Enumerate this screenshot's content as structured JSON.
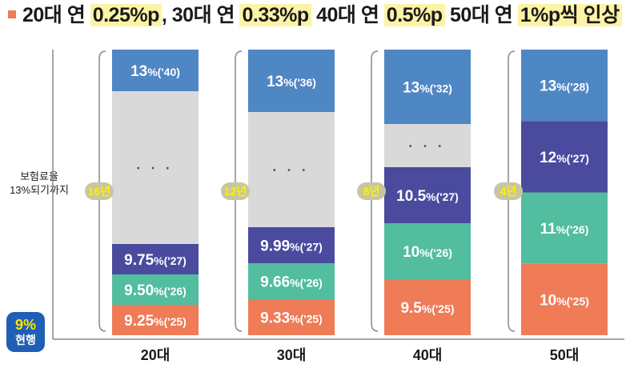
{
  "header": {
    "title_parts": [
      {
        "text": "20대 연 ",
        "hl": false
      },
      {
        "text": "0.25%p",
        "hl": true
      },
      {
        "text": ", 30대 연 ",
        "hl": false
      },
      {
        "text": "0.33%p",
        "hl": true
      },
      {
        "text": " 40대 연 ",
        "hl": false
      },
      {
        "text": "0.5%p",
        "hl": true
      },
      {
        "text": " 50대 연 ",
        "hl": false
      },
      {
        "text": "1%p씩 인상",
        "hl": true
      }
    ]
  },
  "side_label": [
    "보험료율",
    "13%되기까지"
  ],
  "current": {
    "pct": "9%",
    "label": "현행"
  },
  "colors": {
    "bullet": "#f07b57",
    "highlight": "#fdf3a6",
    "badge_bg": "#1f5fb5",
    "badge_pct": "#ffe600",
    "badge_text": "#ffffff",
    "period_bg": "#c8c6a0",
    "period_text": "#ffee00",
    "bracket": "#888888",
    "axis": "#888888",
    "gap_fill": "#d9d9d9",
    "dots": "#555555"
  },
  "chart_data": {
    "type": "stacked-bar",
    "title": "20대 연 0.25%p, 30대 연 0.33%p 40대 연 0.5%p 50대 연 1%p씩 인상",
    "baseline_label": "9%",
    "target_label": "13%",
    "ylim": [
      9,
      13
    ],
    "categories": [
      "20대",
      "30대",
      "40대",
      "50대"
    ],
    "periods": [
      "16년",
      "12년",
      "8년",
      "4년"
    ],
    "bars": [
      {
        "category": "20대",
        "segments": [
          {
            "from": 9.0,
            "to": 9.25,
            "label": "9.25%('25)",
            "color": "#ef7b57",
            "text": "9.25",
            "year": "('25)"
          },
          {
            "from": 9.25,
            "to": 9.5,
            "label": "9.50%('26)",
            "color": "#52bd9f",
            "text": "9.50",
            "year": "('26)"
          },
          {
            "from": 9.5,
            "to": 9.75,
            "label": "9.75%('27)",
            "color": "#4a4a9e",
            "text": "9.75",
            "year": "('27)"
          },
          {
            "from": 9.75,
            "to": 12.75,
            "label": "…",
            "color": "#d9d9d9",
            "gap": true
          },
          {
            "from": 12.75,
            "to": 13.0,
            "label": "13%('40)",
            "color": "#4f86c4",
            "text": "13",
            "year": "('40)"
          }
        ]
      },
      {
        "category": "30대",
        "segments": [
          {
            "from": 9.0,
            "to": 9.33,
            "label": "9.33%('25)",
            "color": "#ef7b57",
            "text": "9.33",
            "year": "('25)"
          },
          {
            "from": 9.33,
            "to": 9.66,
            "label": "9.66%('26)",
            "color": "#52bd9f",
            "text": "9.66",
            "year": "('26)"
          },
          {
            "from": 9.66,
            "to": 9.99,
            "label": "9.99%('27)",
            "color": "#4a4a9e",
            "text": "9.99",
            "year": "('27)"
          },
          {
            "from": 9.99,
            "to": 12.67,
            "label": "…",
            "color": "#d9d9d9",
            "gap": true
          },
          {
            "from": 12.67,
            "to": 13.0,
            "label": "13%('36)",
            "color": "#4f86c4",
            "text": "13",
            "year": "('36)"
          }
        ]
      },
      {
        "category": "40대",
        "segments": [
          {
            "from": 9.0,
            "to": 9.5,
            "label": "9.5%('25)",
            "color": "#ef7b57",
            "text": "9.5",
            "year": "('25)"
          },
          {
            "from": 9.5,
            "to": 10.0,
            "label": "10%('26)",
            "color": "#52bd9f",
            "text": "10",
            "year": "('26)"
          },
          {
            "from": 10.0,
            "to": 10.5,
            "label": "10.5%('27)",
            "color": "#4a4a9e",
            "text": "10.5",
            "year": "('27)"
          },
          {
            "from": 10.5,
            "to": 12.5,
            "label": "…",
            "color": "#d9d9d9",
            "gap": true
          },
          {
            "from": 12.5,
            "to": 13.0,
            "label": "13%('32)",
            "color": "#4f86c4",
            "text": "13",
            "year": "('32)"
          }
        ]
      },
      {
        "category": "50대",
        "segments": [
          {
            "from": 9.0,
            "to": 10.0,
            "label": "10%('25)",
            "color": "#ef7b57",
            "text": "10",
            "year": "('25)"
          },
          {
            "from": 10.0,
            "to": 11.0,
            "label": "11%('26)",
            "color": "#52bd9f",
            "text": "11",
            "year": "('26)"
          },
          {
            "from": 11.0,
            "to": 12.0,
            "label": "12%('27)",
            "color": "#4a4a9e",
            "text": "12",
            "year": "('27)"
          },
          {
            "from": 12.0,
            "to": 13.0,
            "label": "13%('28)",
            "color": "#4f86c4",
            "text": "13",
            "year": "('28)"
          }
        ]
      }
    ]
  }
}
